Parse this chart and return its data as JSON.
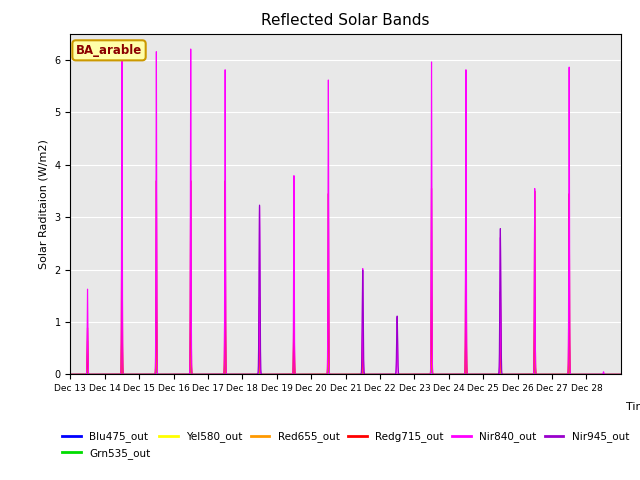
{
  "title": "Reflected Solar Bands",
  "xlabel": "Time",
  "ylabel": "Solar Raditaion (W/m2)",
  "annotation": "BA_arable",
  "ylim": [
    0,
    6.5
  ],
  "series": [
    {
      "name": "Blu475_out",
      "color": "#0000ff"
    },
    {
      "name": "Grn535_out",
      "color": "#00dd00"
    },
    {
      "name": "Yel580_out",
      "color": "#ffff00"
    },
    {
      "name": "Red655_out",
      "color": "#ff9900"
    },
    {
      "name": "Redg715_out",
      "color": "#ff0000"
    },
    {
      "name": "Nir840_out",
      "color": "#ff00ff"
    },
    {
      "name": "Nir945_out",
      "color": "#9900cc"
    }
  ],
  "background_color": "#e8e8e8",
  "n_days": 16,
  "day_start": 13,
  "points_per_day": 288,
  "day_peaks_nir840": [
    1.65,
    6.25,
    6.25,
    6.3,
    5.9,
    3.25,
    3.85,
    5.7,
    2.05,
    1.1,
    6.05,
    5.9,
    2.65,
    3.6,
    5.95,
    0.05
  ],
  "day_peaks_nir945": [
    0.0,
    0.0,
    0.0,
    0.0,
    0.0,
    3.25,
    0.0,
    0.0,
    2.0,
    1.12,
    0.0,
    0.0,
    2.8,
    0.0,
    0.0,
    0.0
  ],
  "day_peaks_redg": [
    0.9,
    3.75,
    3.75,
    3.75,
    3.75,
    1.5,
    1.55,
    3.5,
    1.05,
    0.0,
    3.6,
    3.5,
    1.6,
    3.55,
    3.5,
    0.0
  ],
  "day_peaks_red": [
    0.65,
    1.5,
    1.5,
    1.5,
    1.5,
    0.45,
    1.2,
    1.5,
    0.45,
    0.0,
    1.5,
    1.5,
    0.45,
    1.5,
    1.35,
    0.0
  ],
  "day_peaks_yel": [
    0.5,
    1.2,
    1.2,
    1.2,
    1.2,
    0.35,
    1.0,
    1.2,
    0.3,
    0.0,
    1.2,
    1.2,
    0.3,
    1.2,
    1.1,
    0.0
  ],
  "day_peaks_grn": [
    0.4,
    1.1,
    1.1,
    1.1,
    1.1,
    0.3,
    0.9,
    1.0,
    0.25,
    0.0,
    1.0,
    1.0,
    0.25,
    1.0,
    0.9,
    0.0
  ],
  "day_peaks_blu": [
    0.15,
    0.35,
    0.35,
    0.35,
    0.35,
    0.1,
    0.3,
    0.35,
    0.1,
    0.0,
    0.35,
    0.35,
    0.1,
    0.35,
    0.3,
    0.0
  ],
  "tick_labels": [
    "Dec 13",
    "Dec 14",
    "Dec 15",
    "Dec 16",
    "Dec 17",
    "Dec 18",
    "Dec 19",
    "Dec 20",
    "Dec 21",
    "Dec 22",
    "Dec 23",
    "Dec 24",
    "Dec 25",
    "Dec 26",
    "Dec 27",
    "Dec 28"
  ],
  "legend_ncol": 6
}
